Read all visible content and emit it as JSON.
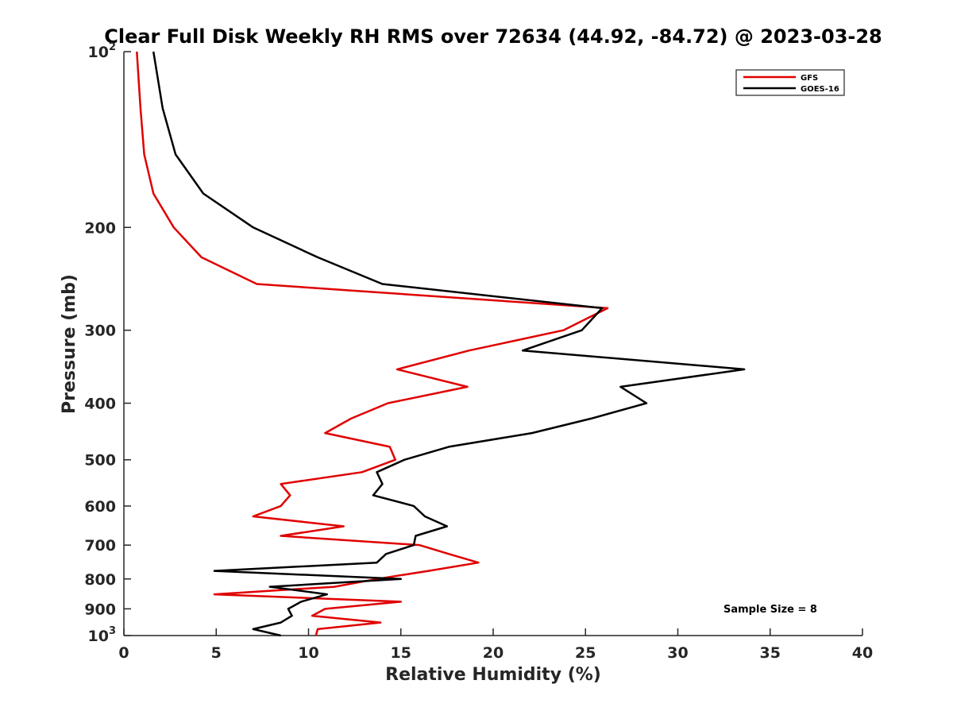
{
  "chart_data": {
    "type": "line",
    "title": "Clear Full Disk Weekly RH RMS over 72634 (44.92, -84.72) @ 2023-03-28",
    "xlabel": "Relative Humidity (%)",
    "ylabel": "Pressure (mb)",
    "xlim": [
      0,
      40
    ],
    "ylim": [
      100,
      1000
    ],
    "yscale": "log",
    "y_reversed": true,
    "grid": false,
    "legend_position": "top-right",
    "xticks": [
      {
        "value": 0,
        "label": "0"
      },
      {
        "value": 5,
        "label": "5"
      },
      {
        "value": 10,
        "label": "10"
      },
      {
        "value": 15,
        "label": "15"
      },
      {
        "value": 20,
        "label": "20"
      },
      {
        "value": 25,
        "label": "25"
      },
      {
        "value": 30,
        "label": "30"
      },
      {
        "value": 35,
        "label": "35"
      },
      {
        "value": 40,
        "label": "40"
      }
    ],
    "yticks": [
      {
        "value": 100,
        "base": "10",
        "exp": "2"
      },
      {
        "value": 200,
        "label": "200"
      },
      {
        "value": 300,
        "label": "300"
      },
      {
        "value": 400,
        "label": "400"
      },
      {
        "value": 500,
        "label": "500"
      },
      {
        "value": 600,
        "label": "600"
      },
      {
        "value": 700,
        "label": "700"
      },
      {
        "value": 800,
        "label": "800"
      },
      {
        "value": 900,
        "label": "900"
      },
      {
        "value": 1000,
        "base": "10",
        "exp": "3"
      }
    ],
    "annotation": "Sample Size = 8",
    "series": [
      {
        "name": "GFS",
        "color": "#e00000",
        "points": [
          [
            0.7,
            100
          ],
          [
            0.9,
            125
          ],
          [
            1.1,
            150
          ],
          [
            1.6,
            175
          ],
          [
            2.7,
            200
          ],
          [
            4.2,
            225
          ],
          [
            7.2,
            250
          ],
          [
            26.2,
            275
          ],
          [
            23.8,
            300
          ],
          [
            18.7,
            325
          ],
          [
            14.8,
            350
          ],
          [
            18.6,
            375
          ],
          [
            14.3,
            400
          ],
          [
            12.3,
            425
          ],
          [
            10.9,
            450
          ],
          [
            14.4,
            475
          ],
          [
            14.7,
            500
          ],
          [
            12.9,
            525
          ],
          [
            8.5,
            550
          ],
          [
            9.0,
            575
          ],
          [
            8.5,
            600
          ],
          [
            7.0,
            625
          ],
          [
            11.9,
            650
          ],
          [
            8.5,
            675
          ],
          [
            16.0,
            700
          ],
          [
            17.6,
            725
          ],
          [
            19.2,
            750
          ],
          [
            16.5,
            775
          ],
          [
            13.7,
            800
          ],
          [
            11.4,
            825
          ],
          [
            4.9,
            850
          ],
          [
            15.0,
            875
          ],
          [
            10.9,
            900
          ],
          [
            10.2,
            925
          ],
          [
            13.9,
            950
          ],
          [
            10.5,
            975
          ],
          [
            10.4,
            1000
          ]
        ]
      },
      {
        "name": "GOES-16",
        "color": "#000000",
        "points": [
          [
            1.6,
            100
          ],
          [
            2.1,
            125
          ],
          [
            2.8,
            150
          ],
          [
            4.3,
            175
          ],
          [
            7.0,
            200
          ],
          [
            10.5,
            225
          ],
          [
            14.0,
            250
          ],
          [
            25.9,
            275
          ],
          [
            24.8,
            300
          ],
          [
            21.6,
            325
          ],
          [
            33.6,
            350
          ],
          [
            26.9,
            375
          ],
          [
            28.3,
            400
          ],
          [
            25.3,
            425
          ],
          [
            22.1,
            450
          ],
          [
            17.6,
            475
          ],
          [
            15.2,
            500
          ],
          [
            13.7,
            525
          ],
          [
            14.0,
            550
          ],
          [
            13.5,
            575
          ],
          [
            15.7,
            600
          ],
          [
            16.3,
            625
          ],
          [
            17.5,
            650
          ],
          [
            15.8,
            675
          ],
          [
            15.7,
            700
          ],
          [
            14.2,
            725
          ],
          [
            13.7,
            750
          ],
          [
            4.9,
            775
          ],
          [
            15.0,
            800
          ],
          [
            7.9,
            825
          ],
          [
            11.0,
            850
          ],
          [
            9.6,
            875
          ],
          [
            8.9,
            900
          ],
          [
            9.1,
            925
          ],
          [
            8.5,
            950
          ],
          [
            7.0,
            975
          ],
          [
            8.5,
            1000
          ]
        ]
      }
    ]
  }
}
